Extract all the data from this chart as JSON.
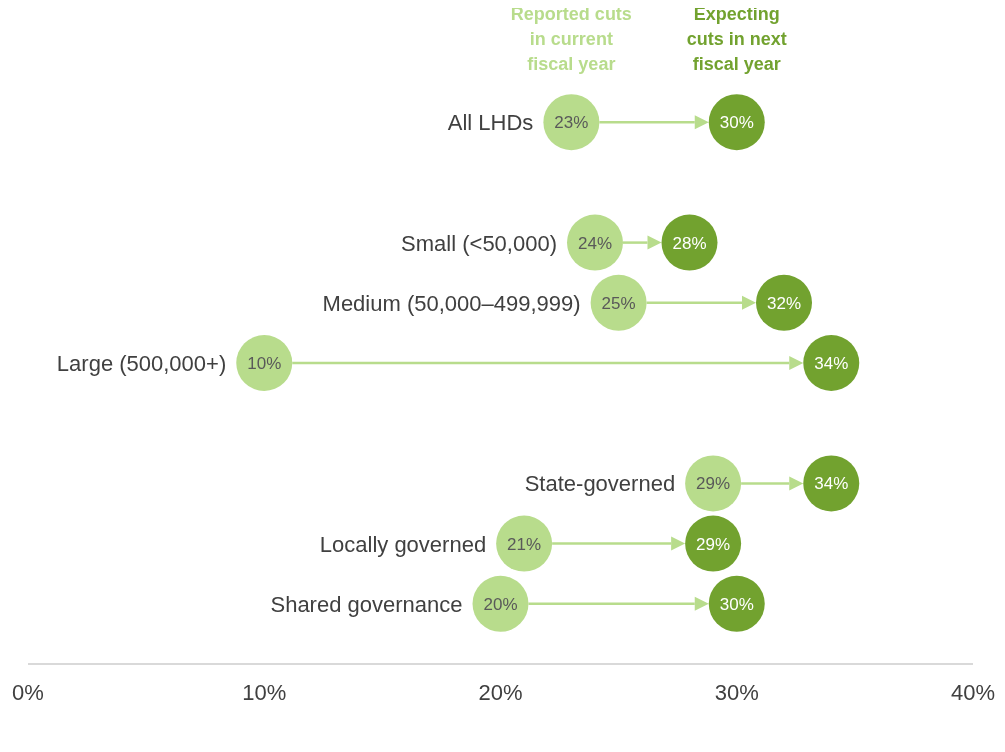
{
  "chart_data": {
    "type": "scatter",
    "orientation": "horizontal",
    "marker": "circle",
    "categories": [
      "All LHDs",
      null,
      "Small (<50,000)",
      "Medium (50,000–499,999)",
      "Large (500,000+)",
      null,
      "State-governed",
      "Locally governed",
      "Shared governance"
    ],
    "series": [
      {
        "name": "Reported cuts in current fiscal year",
        "color": "#b8dc8c",
        "values": [
          23,
          null,
          24,
          25,
          10,
          null,
          29,
          21,
          20
        ],
        "value_labels": [
          "23%",
          null,
          "24%",
          "25%",
          "10%",
          null,
          "29%",
          "21%",
          "20%"
        ]
      },
      {
        "name": "Expecting cuts in next fiscal year",
        "color": "#72a22f",
        "values": [
          30,
          null,
          28,
          32,
          34,
          null,
          34,
          29,
          30
        ],
        "value_labels": [
          "30%",
          null,
          "28%",
          "32%",
          "34%",
          null,
          "34%",
          "29%",
          "30%"
        ]
      }
    ],
    "xlim": [
      0,
      40
    ],
    "xticks": [
      {
        "value": 0,
        "label": "0%"
      },
      {
        "value": 10,
        "label": "10%"
      },
      {
        "value": 20,
        "label": "20%"
      },
      {
        "value": 30,
        "label": "30%"
      },
      {
        "value": 40,
        "label": "40%"
      }
    ]
  }
}
